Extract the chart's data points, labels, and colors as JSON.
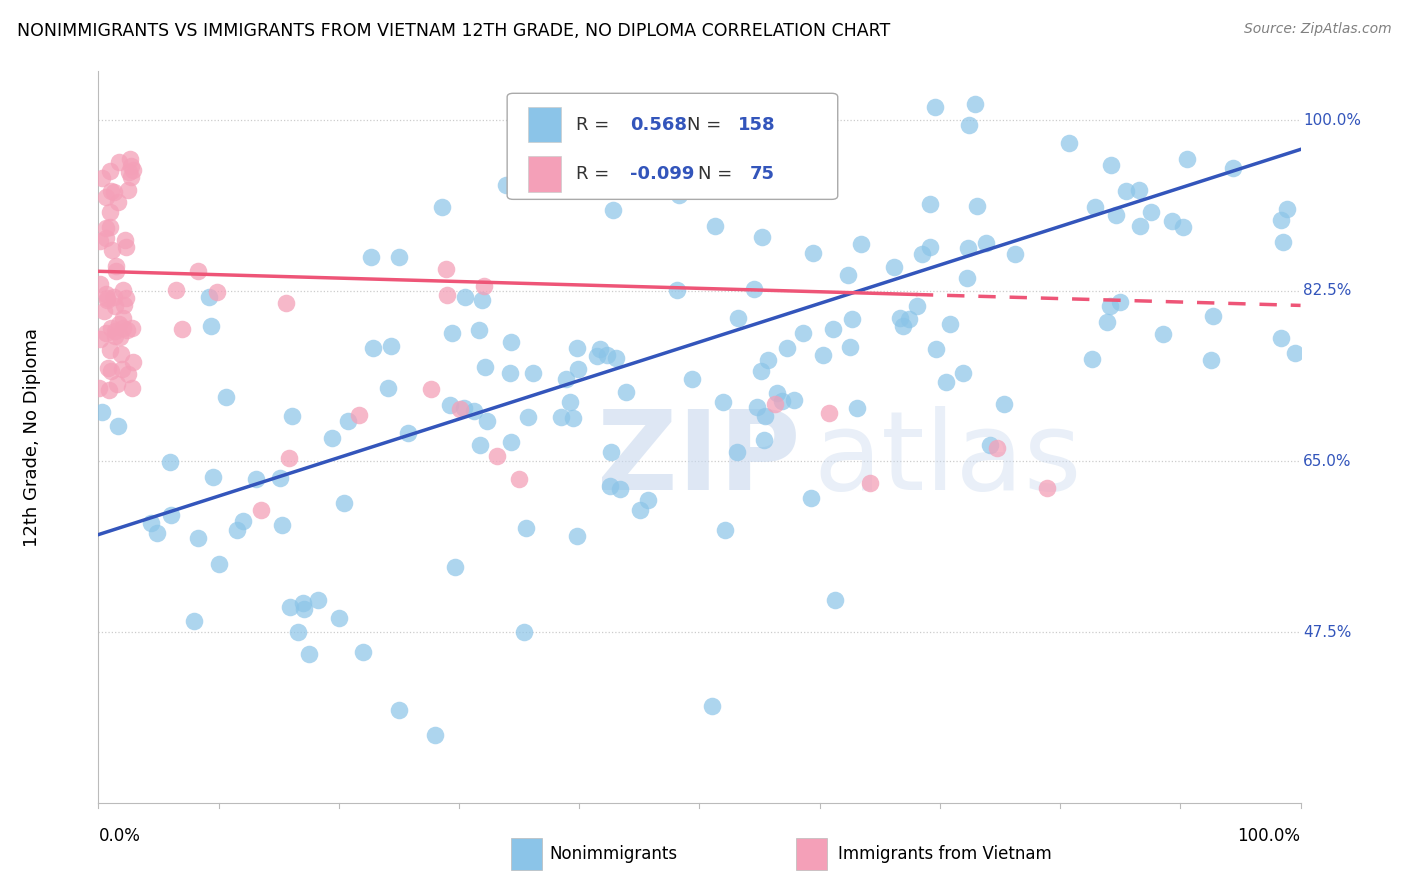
{
  "title": "NONIMMIGRANTS VS IMMIGRANTS FROM VIETNAM 12TH GRADE, NO DIPLOMA CORRELATION CHART",
  "source": "Source: ZipAtlas.com",
  "ylabel": "12th Grade, No Diploma",
  "xmin": 0.0,
  "xmax": 1.0,
  "ymin": 0.3,
  "ymax": 1.05,
  "grid_color": "#cccccc",
  "background_color": "#ffffff",
  "blue_color": "#8BC4E8",
  "pink_color": "#F4A0B8",
  "blue_line_color": "#3355BB",
  "pink_line_color": "#EE5577",
  "legend_R_blue": "0.568",
  "legend_N_blue": "158",
  "legend_R_pink": "-0.099",
  "legend_N_pink": "75",
  "ytick_vals": [
    0.475,
    0.65,
    0.825,
    1.0
  ],
  "ytick_labels": [
    "47.5%",
    "65.0%",
    "82.5%",
    "100.0%"
  ]
}
